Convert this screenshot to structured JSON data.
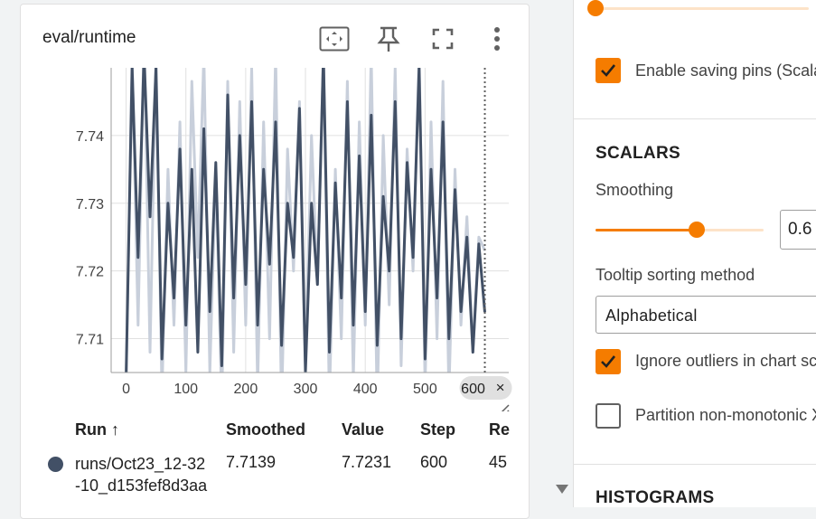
{
  "card": {
    "title": "eval/runtime",
    "tools": [
      "fit-domain-icon",
      "pin-icon",
      "fullscreen-icon",
      "more-vert-icon"
    ]
  },
  "chart_data": {
    "type": "line",
    "title": "",
    "xlabel": "",
    "ylabel": "",
    "xlim": [
      -25,
      640
    ],
    "ylim": [
      7.705,
      7.75
    ],
    "x_ticks": [
      0,
      100,
      200,
      300,
      400,
      500
    ],
    "y_ticks": [
      7.71,
      7.72,
      7.73,
      7.74
    ],
    "y_tick_labels": [
      "7.71",
      "7.72",
      "7.73",
      "7.74"
    ],
    "cursor_step_label": "600",
    "cursor_step_close": "×",
    "grid": true,
    "series": [
      {
        "role": "raw",
        "color": "#c8cfdb",
        "x": [
          0,
          10,
          20,
          30,
          40,
          50,
          60,
          70,
          80,
          90,
          100,
          110,
          120,
          130,
          140,
          150,
          160,
          170,
          180,
          190,
          200,
          210,
          220,
          230,
          240,
          250,
          260,
          270,
          280,
          290,
          300,
          310,
          320,
          330,
          340,
          350,
          360,
          370,
          380,
          390,
          400,
          410,
          420,
          430,
          440,
          450,
          460,
          470,
          480,
          490,
          500,
          510,
          520,
          530,
          540,
          550,
          560,
          570,
          580,
          590,
          600
        ],
        "values": [
          7.703,
          7.752,
          7.712,
          7.755,
          7.708,
          7.752,
          7.702,
          7.735,
          7.712,
          7.742,
          7.705,
          7.748,
          7.722,
          7.752,
          7.705,
          7.735,
          7.7,
          7.748,
          7.708,
          7.745,
          7.712,
          7.75,
          7.703,
          7.742,
          7.71,
          7.752,
          7.7,
          7.738,
          7.72,
          7.745,
          7.706,
          7.74,
          7.718,
          7.752,
          7.701,
          7.735,
          7.71,
          7.748,
          7.704,
          7.742,
          7.712,
          7.752,
          7.7,
          7.74,
          7.715,
          7.75,
          7.706,
          7.738,
          7.72,
          7.752,
          7.703,
          7.742,
          7.71,
          7.748,
          7.702,
          7.735,
          7.712,
          7.728,
          7.708,
          7.725,
          7.723
        ]
      },
      {
        "role": "smoothed",
        "color": "#425066",
        "x": [
          0,
          10,
          20,
          30,
          40,
          50,
          60,
          70,
          80,
          90,
          100,
          110,
          120,
          130,
          140,
          150,
          160,
          170,
          180,
          190,
          200,
          210,
          220,
          230,
          240,
          250,
          260,
          270,
          280,
          290,
          300,
          310,
          320,
          330,
          340,
          350,
          360,
          370,
          380,
          390,
          400,
          410,
          420,
          430,
          440,
          450,
          460,
          470,
          480,
          490,
          500,
          510,
          520,
          530,
          540,
          550,
          560,
          570,
          580,
          590,
          600
        ],
        "values": [
          7.704,
          7.75,
          7.722,
          7.752,
          7.728,
          7.75,
          7.707,
          7.73,
          7.716,
          7.738,
          7.712,
          7.735,
          7.708,
          7.741,
          7.714,
          7.736,
          7.706,
          7.746,
          7.716,
          7.74,
          7.718,
          7.745,
          7.712,
          7.735,
          7.721,
          7.742,
          7.709,
          7.73,
          7.722,
          7.744,
          7.705,
          7.73,
          7.718,
          7.752,
          7.708,
          7.733,
          7.716,
          7.745,
          7.712,
          7.737,
          7.714,
          7.743,
          7.709,
          7.731,
          7.72,
          7.745,
          7.71,
          7.736,
          7.722,
          7.75,
          7.707,
          7.735,
          7.716,
          7.742,
          7.71,
          7.732,
          7.714,
          7.725,
          7.708,
          7.724,
          7.7139
        ]
      }
    ]
  },
  "table": {
    "headers": {
      "run": "Run",
      "run_sort": "↑",
      "smoothed": "Smoothed",
      "value": "Value",
      "step": "Step",
      "relative": "Re"
    },
    "rows": [
      {
        "run": "runs/Oct23_12-32-10_d153fef8d3aa",
        "smoothed": "7.7139",
        "value": "7.7231",
        "step": "600",
        "relative": "45",
        "color": "#425066"
      }
    ]
  },
  "settings": {
    "top_slider_value": 0.0,
    "enable_pins": {
      "label": "Enable saving pins (Scala",
      "checked": true
    },
    "scalars": {
      "section_title": "SCALARS",
      "smoothing_label": "Smoothing",
      "smoothing_value": "0.6",
      "smoothing_fraction": 0.6,
      "tooltip_label": "Tooltip sorting method",
      "tooltip_value": "Alphabetical",
      "ignore_outliers": {
        "label": "Ignore outliers in chart sc",
        "checked": true
      },
      "partition": {
        "label": "Partition non-monotonic X",
        "checked": false
      }
    },
    "histograms": {
      "section_title": "HISTOGRAMS"
    },
    "accent_color": "#f57c00"
  }
}
